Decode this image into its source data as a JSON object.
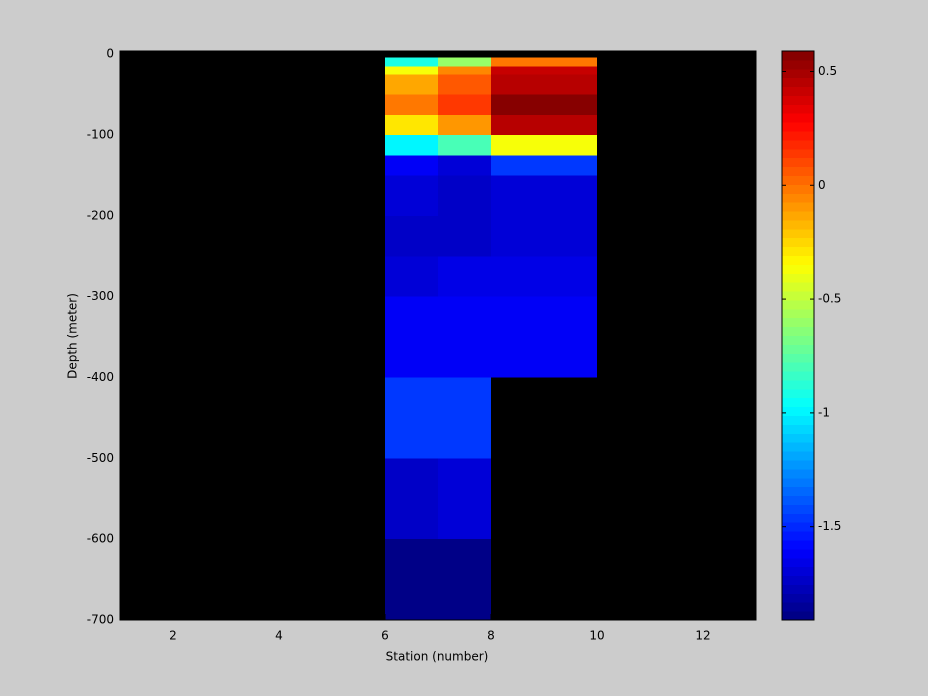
{
  "chart_data": {
    "type": "heatmap",
    "xlabel": "Station (number)",
    "ylabel": "Depth (meter)",
    "xlim": [
      1,
      13
    ],
    "ylim": [
      -700,
      4
    ],
    "xticks": [
      2,
      4,
      6,
      8,
      10,
      12
    ],
    "yticks": [
      0,
      -100,
      -200,
      -300,
      -400,
      -500,
      -600,
      -700
    ],
    "x_edges": [
      6,
      7,
      8,
      10
    ],
    "y_edges": [
      -4,
      -15,
      -25,
      -50,
      -75,
      -100,
      -125,
      -150,
      -200,
      -250,
      -300,
      -400,
      -500,
      -600,
      -700
    ],
    "values": [
      [
        -0.9,
        -0.6,
        0.0
      ],
      [
        -0.35,
        -0.05,
        0.4
      ],
      [
        -0.15,
        0.05,
        0.45
      ],
      [
        0.0,
        0.15,
        0.58
      ],
      [
        -0.3,
        -0.1,
        0.45
      ],
      [
        -1.0,
        -0.8,
        -0.35
      ],
      [
        -1.6,
        -1.7,
        -1.45
      ],
      [
        -1.7,
        -1.75,
        -1.7
      ],
      [
        -1.75,
        -1.75,
        -1.7
      ],
      [
        -1.7,
        -1.65,
        -1.65
      ],
      [
        -1.6,
        -1.6,
        -1.6
      ],
      [
        -1.45,
        -1.45,
        null
      ],
      [
        -1.75,
        -1.7,
        null
      ],
      [
        -1.9,
        -1.9,
        null
      ]
    ],
    "colormap": "jet",
    "clim": [
      -1.91,
      0.59
    ],
    "colorbar_ticks": [
      0.5,
      0,
      -0.5,
      -1,
      -1.5
    ],
    "background": "#000000"
  }
}
